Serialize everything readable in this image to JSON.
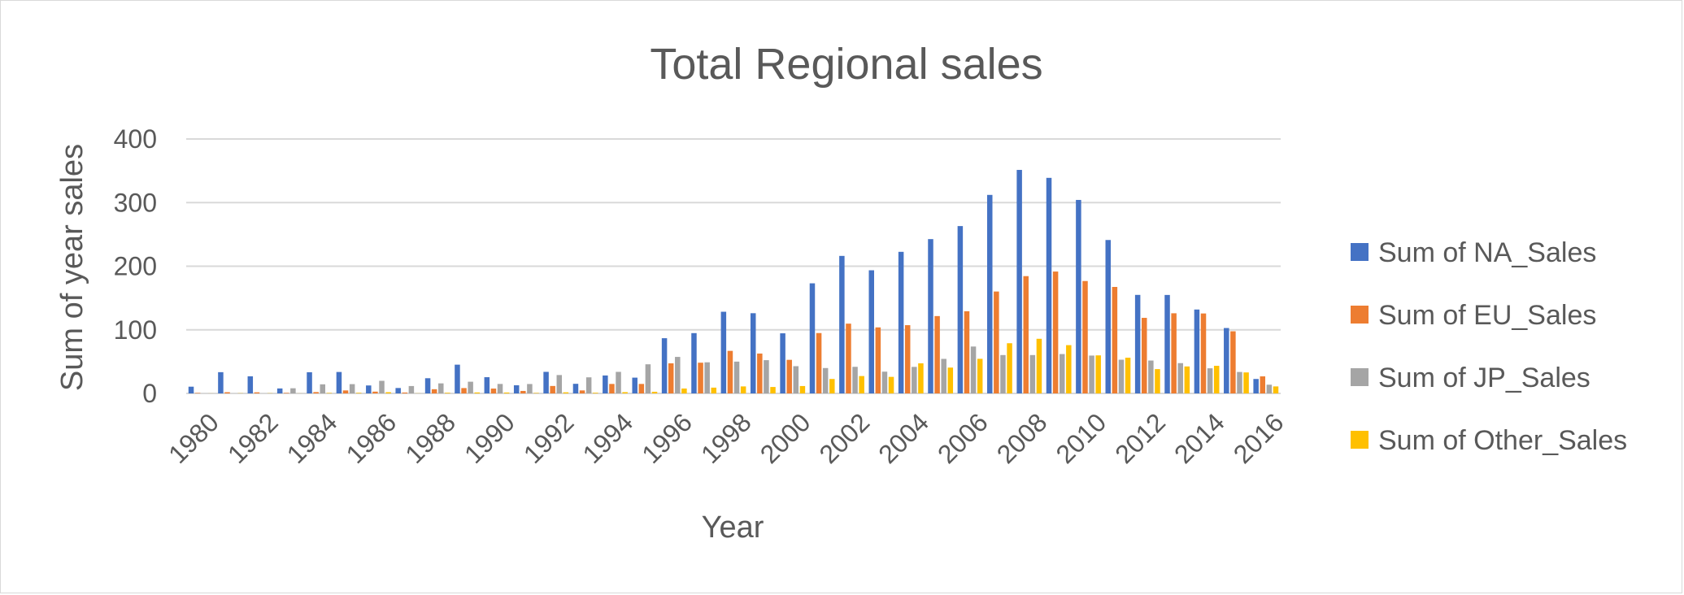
{
  "chart_data": {
    "type": "bar",
    "title": "Total Regional sales",
    "xlabel": "Year",
    "ylabel": "Sum of year sales",
    "ylim": [
      0,
      400
    ],
    "yticks": [
      0,
      100,
      200,
      300,
      400
    ],
    "grid": true,
    "legend_position": "right",
    "categories": [
      "1980",
      "1981",
      "1982",
      "1983",
      "1984",
      "1985",
      "1986",
      "1987",
      "1988",
      "1989",
      "1990",
      "1991",
      "1992",
      "1993",
      "1994",
      "1995",
      "1996",
      "1997",
      "1998",
      "1999",
      "2000",
      "2001",
      "2002",
      "2003",
      "2004",
      "2005",
      "2006",
      "2007",
      "2008",
      "2009",
      "2010",
      "2011",
      "2012",
      "2013",
      "2014",
      "2015",
      "2016"
    ],
    "xtick_labels": [
      "1980",
      "1982",
      "1984",
      "1986",
      "1988",
      "1990",
      "1992",
      "1994",
      "1996",
      "1998",
      "2000",
      "2002",
      "2004",
      "2006",
      "2008",
      "2010",
      "2012",
      "2014",
      "2016"
    ],
    "series": [
      {
        "name": "Sum of NA_Sales",
        "color": "#4472C4",
        "values": [
          10.6,
          33.4,
          26.9,
          7.8,
          33.3,
          33.7,
          12.5,
          8.5,
          23.9,
          45.2,
          25.5,
          12.8,
          33.9,
          15.1,
          28.2,
          24.8,
          86.8,
          94.8,
          128.4,
          126.1,
          94.5,
          173.1,
          216.2,
          193.6,
          222.6,
          242.6,
          263.1,
          312.1,
          351.4,
          338.9,
          304.2,
          241.2,
          154.9,
          154.8,
          131.9,
          102.8,
          22.7
        ]
      },
      {
        "name": "Sum of EU_Sales",
        "color": "#ED7D31",
        "values": [
          0.7,
          1.9,
          1.7,
          0.8,
          2.1,
          4.7,
          2.8,
          1.4,
          6.6,
          8.4,
          7.6,
          3.9,
          11.7,
          4.7,
          14.9,
          14.9,
          47.3,
          48.3,
          66.9,
          62.7,
          52.8,
          94.9,
          109.7,
          103.8,
          107.3,
          121.6,
          129.2,
          160.2,
          184.4,
          191.6,
          176.7,
          167.4,
          118.8,
          126.0,
          125.7,
          97.7,
          26.8
        ]
      },
      {
        "name": "Sum of JP_Sales",
        "color": "#A5A5A5",
        "values": [
          0.0,
          0.0,
          0.0,
          8.1,
          14.3,
          14.6,
          19.8,
          11.6,
          15.8,
          18.4,
          14.9,
          14.8,
          28.9,
          25.3,
          33.9,
          45.8,
          57.4,
          48.9,
          50.0,
          52.3,
          42.8,
          39.9,
          41.8,
          34.2,
          41.7,
          54.3,
          73.7,
          60.3,
          60.3,
          61.9,
          59.5,
          53.0,
          51.7,
          47.6,
          39.5,
          33.7,
          13.7
        ]
      },
      {
        "name": "Sum of Other_Sales",
        "color": "#FFC000",
        "values": [
          0.1,
          0.3,
          0.3,
          0.1,
          0.7,
          0.9,
          1.9,
          0.2,
          1.0,
          1.5,
          1.4,
          0.7,
          1.7,
          1.0,
          2.0,
          2.6,
          7.7,
          9.1,
          11.0,
          10.1,
          11.6,
          22.7,
          27.3,
          26.0,
          47.3,
          40.6,
          54.4,
          78.9,
          85.9,
          75.9,
          59.8,
          56.1,
          38.2,
          42.4,
          43.4,
          33.0,
          11.0
        ]
      }
    ]
  }
}
